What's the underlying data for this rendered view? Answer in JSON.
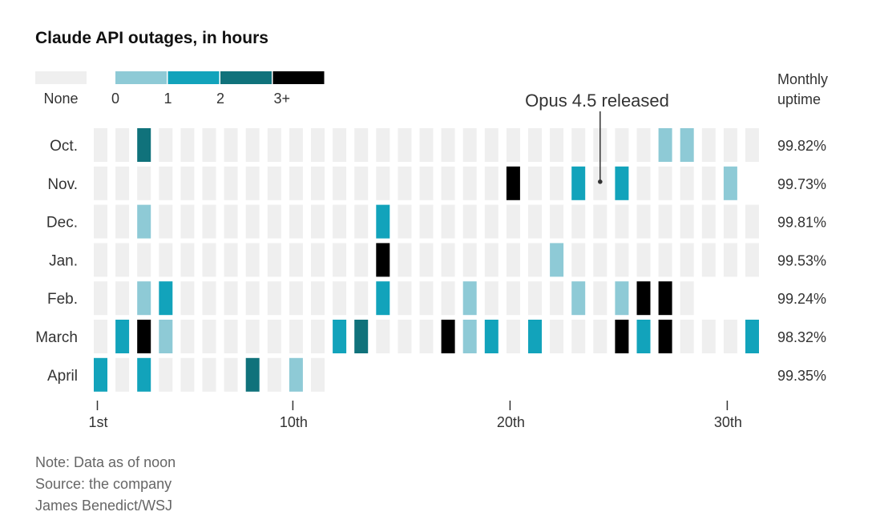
{
  "title": "Claude API outages, in hours",
  "notes": {
    "note": "Note: Data as of noon",
    "source": "Source: the company",
    "credit": "James Benedict/WSJ"
  },
  "chart_data": {
    "type": "heatmap",
    "title": "Claude API outages, in hours",
    "legend": {
      "none_label": "None",
      "none_color": "#efefef",
      "ticks": [
        "0",
        "1",
        "2",
        "3+"
      ],
      "colors": [
        "#8ecad6",
        "#12a3bb",
        "#10727b",
        "#000000"
      ]
    },
    "uptime_header": [
      "Monthly",
      "uptime"
    ],
    "annotation": {
      "text": "Opus 4.5 released",
      "month": "Nov.",
      "day": 24
    },
    "x_ticks": [
      {
        "day": 1,
        "label": "1st"
      },
      {
        "day": 10,
        "label": "10th"
      },
      {
        "day": 20,
        "label": "20th"
      },
      {
        "day": 30,
        "label": "30th"
      }
    ],
    "months": [
      {
        "name": "Oct.",
        "uptime": "99.82%",
        "days": 31,
        "outages": {
          "3": 2,
          "27": 0,
          "28": 0
        }
      },
      {
        "name": "Nov.",
        "uptime": "99.73%",
        "days": 30,
        "outages": {
          "20": 3,
          "23": 1,
          "25": 1,
          "30": 0
        }
      },
      {
        "name": "Dec.",
        "uptime": "99.81%",
        "days": 31,
        "outages": {
          "3": 0,
          "14": 1
        }
      },
      {
        "name": "Jan.",
        "uptime": "99.53%",
        "days": 31,
        "outages": {
          "14": 3,
          "22": 0
        }
      },
      {
        "name": "Feb.",
        "uptime": "99.24%",
        "days": 28,
        "outages": {
          "3": 0,
          "4": 1,
          "14": 1,
          "18": 0,
          "23": 0,
          "25": 0,
          "26": 3,
          "27": 3
        }
      },
      {
        "name": "March",
        "uptime": "98.32%",
        "days": 31,
        "outages": {
          "2": 1,
          "3": 3,
          "4": 0,
          "12": 1,
          "13": 2,
          "17": 3,
          "18": 0,
          "19": 1,
          "21": 1,
          "25": 3,
          "26": 1,
          "27": 3,
          "31": 1
        }
      },
      {
        "name": "April",
        "uptime": "99.35%",
        "days": 11,
        "outages": {
          "1": 1,
          "3": 1,
          "8": 2,
          "10": 0
        }
      }
    ]
  }
}
